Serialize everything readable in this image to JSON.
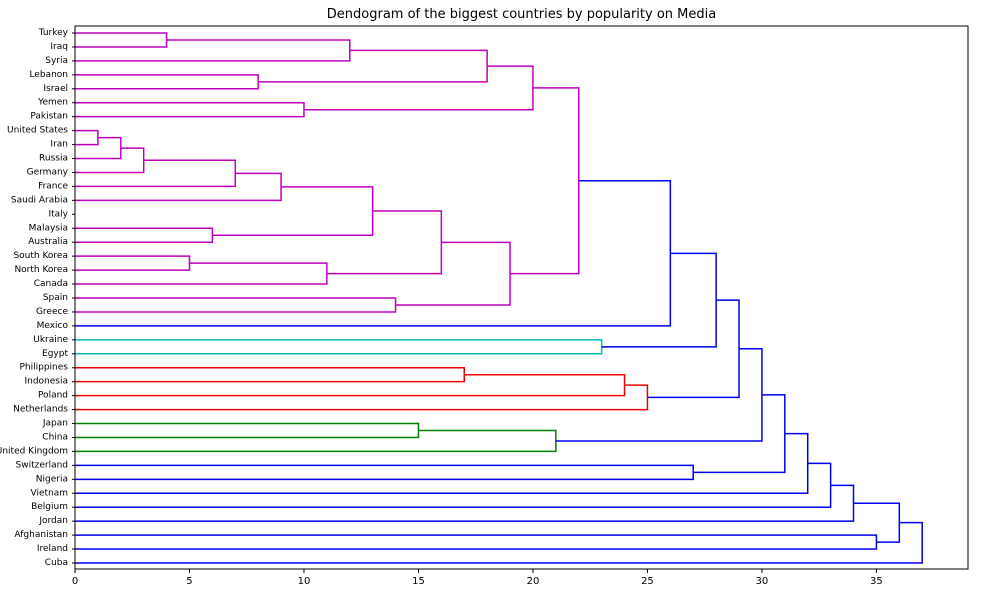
{
  "chart_data": {
    "type": "dendrogram",
    "title": "Dendogram of the biggest countries by popularity on Media",
    "xlabel": "",
    "ylabel": "",
    "xlim": [
      0,
      39
    ],
    "xticks": [
      0,
      5,
      10,
      15,
      20,
      25,
      30,
      35
    ],
    "grid": false,
    "leaves": [
      "Turkey",
      "Iraq",
      "Syria",
      "Lebanon",
      "Israel",
      "Yemen",
      "Pakistan",
      "United States",
      "Iran",
      "Russia",
      "Germany",
      "France",
      "Saudi Arabia",
      "Italy",
      "Malaysia",
      "Australia",
      "South Korea",
      "North Korea",
      "Canada",
      "Spain",
      "Greece",
      "Mexico",
      "Ukraine",
      "Egypt",
      "Philippines",
      "Indonesia",
      "Poland",
      "Netherlands",
      "Japan",
      "China",
      "United Kingdom",
      "Switzerland",
      "Nigeria",
      "Vietnam",
      "Belgium",
      "Jordan",
      "Afghanistan",
      "Ireland",
      "Cuba"
    ],
    "colors": {
      "magenta": "#bf00bf",
      "blue": "#0000ee",
      "cyan": "#00bfbf",
      "red": "#ee0000",
      "green": "#008000"
    },
    "merges": [
      {
        "id": "A",
        "left": "Turkey",
        "right": "Iraq",
        "height": 4,
        "color": "magenta"
      },
      {
        "id": "B",
        "left": "A",
        "right": "Syria",
        "height": 12,
        "color": "magenta"
      },
      {
        "id": "C",
        "left": "Lebanon",
        "right": "Israel",
        "height": 8,
        "color": "magenta"
      },
      {
        "id": "D",
        "left": "B",
        "right": "C",
        "height": 18,
        "color": "magenta"
      },
      {
        "id": "E",
        "left": "Yemen",
        "right": "Pakistan",
        "height": 10,
        "color": "magenta"
      },
      {
        "id": "F",
        "left": "D",
        "right": "E",
        "height": 20,
        "color": "magenta"
      },
      {
        "id": "G",
        "left": "United States",
        "right": "Iran",
        "height": 1,
        "color": "magenta"
      },
      {
        "id": "H",
        "left": "G",
        "right": "Russia",
        "height": 2,
        "color": "magenta"
      },
      {
        "id": "I",
        "left": "H",
        "right": "Germany",
        "height": 3,
        "color": "magenta"
      },
      {
        "id": "J",
        "left": "I",
        "right": "France",
        "height": 7,
        "color": "magenta"
      },
      {
        "id": "K",
        "left": "J",
        "right": "Saudi Arabia",
        "height": 9,
        "color": "magenta"
      },
      {
        "id": "L",
        "left": "Malaysia",
        "right": "Australia",
        "height": 6,
        "color": "magenta"
      },
      {
        "id": "M",
        "left": "K",
        "right": "L",
        "height": 13,
        "color": "magenta"
      },
      {
        "id": "N",
        "left": "South Korea",
        "right": "North Korea",
        "height": 5,
        "color": "magenta"
      },
      {
        "id": "O",
        "left": "N",
        "right": "Canada",
        "height": 11,
        "color": "magenta"
      },
      {
        "id": "P",
        "left": "M",
        "right": "O",
        "height": 16,
        "color": "magenta"
      },
      {
        "id": "Q",
        "left": "Spain",
        "right": "Greece",
        "height": 14,
        "color": "magenta"
      },
      {
        "id": "R",
        "left": "P",
        "right": "Q",
        "height": 19,
        "color": "magenta"
      },
      {
        "id": "S",
        "left": "F",
        "right": "R",
        "height": 22,
        "color": "magenta"
      },
      {
        "id": "T",
        "left": "S",
        "right": "Mexico",
        "height": 26,
        "color": "blue"
      },
      {
        "id": "U",
        "left": "Ukraine",
        "right": "Egypt",
        "height": 23,
        "color": "cyan"
      },
      {
        "id": "V",
        "left": "T",
        "right": "U",
        "height": 28,
        "color": "blue"
      },
      {
        "id": "W",
        "left": "Philippines",
        "right": "Indonesia",
        "height": 17,
        "color": "red"
      },
      {
        "id": "X",
        "left": "W",
        "right": "Poland",
        "height": 24,
        "color": "red"
      },
      {
        "id": "Y",
        "left": "X",
        "right": "Netherlands",
        "height": 25,
        "color": "red"
      },
      {
        "id": "Z",
        "left": "V",
        "right": "Y",
        "height": 29,
        "color": "blue"
      },
      {
        "id": "AA",
        "left": "Japan",
        "right": "China",
        "height": 15,
        "color": "green"
      },
      {
        "id": "AB",
        "left": "AA",
        "right": "United Kingdom",
        "height": 21,
        "color": "green"
      },
      {
        "id": "AC",
        "left": "Z",
        "right": "AB",
        "height": 30,
        "color": "blue"
      },
      {
        "id": "AD",
        "left": "Switzerland",
        "right": "Nigeria",
        "height": 27,
        "color": "blue"
      },
      {
        "id": "AE",
        "left": "AC",
        "right": "AD",
        "height": 31,
        "color": "blue"
      },
      {
        "id": "AF",
        "left": "AE",
        "right": "Vietnam",
        "height": 32,
        "color": "blue"
      },
      {
        "id": "AG",
        "left": "AF",
        "right": "Belgium",
        "height": 33,
        "color": "blue"
      },
      {
        "id": "AH",
        "left": "AG",
        "right": "Jordan",
        "height": 34,
        "color": "blue"
      },
      {
        "id": "AI",
        "left": "Afghanistan",
        "right": "Ireland",
        "height": 35,
        "color": "blue"
      },
      {
        "id": "AJ",
        "left": "AH",
        "right": "AI",
        "height": 36,
        "color": "blue"
      },
      {
        "id": "AK",
        "left": "AJ",
        "right": "Cuba",
        "height": 37,
        "color": "blue"
      }
    ]
  }
}
